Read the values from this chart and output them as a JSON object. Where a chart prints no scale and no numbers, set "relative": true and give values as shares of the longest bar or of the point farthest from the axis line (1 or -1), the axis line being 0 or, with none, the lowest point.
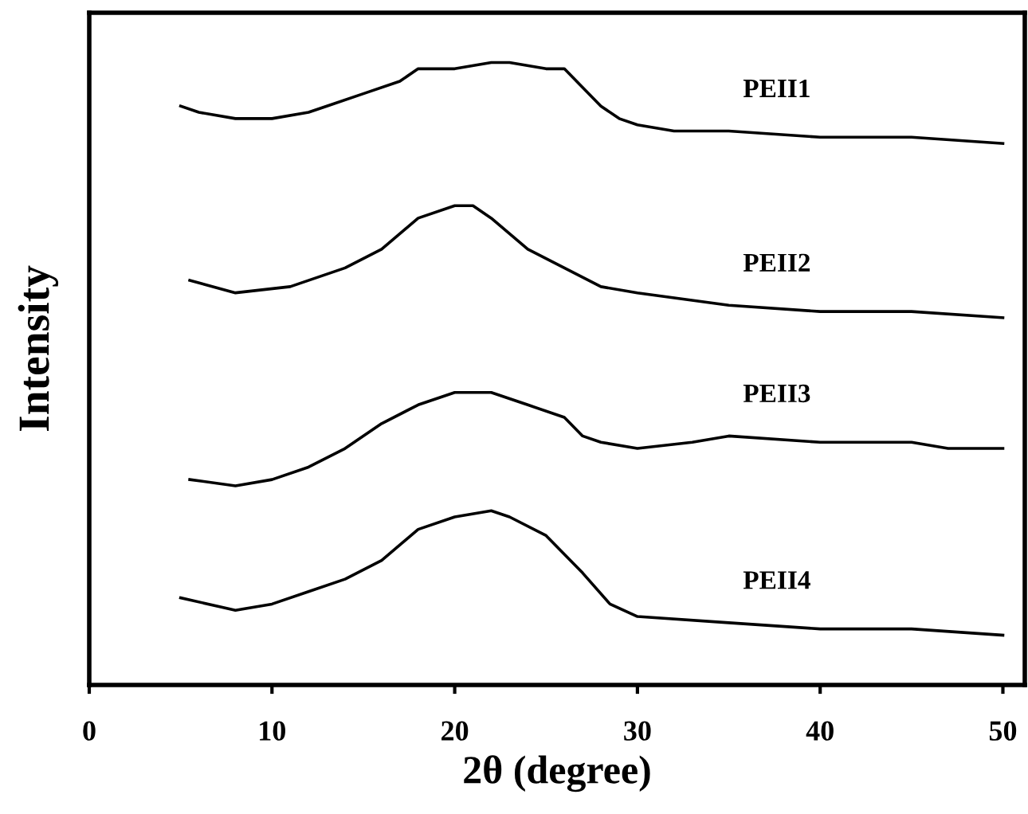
{
  "chart_data": {
    "type": "line",
    "relative": true,
    "xlabel": "2θ (degree)",
    "ylabel": "Intensity",
    "xlim": [
      0,
      51.2
    ],
    "xticks": [
      0,
      10,
      20,
      30,
      40,
      50
    ],
    "grid": false,
    "legend": false,
    "marker": "none",
    "line_style": "solid",
    "series": [
      {
        "name": "PEII1",
        "color": "#000000",
        "x": [
          5,
          6,
          8,
          10,
          12,
          13,
          15,
          17,
          18,
          20,
          22,
          23,
          25,
          26,
          27,
          28,
          29,
          30,
          32,
          35,
          40,
          45,
          50
        ],
        "values": [
          0.93,
          0.92,
          0.91,
          0.91,
          0.92,
          0.93,
          0.95,
          0.97,
          0.99,
          0.99,
          1.0,
          1.0,
          0.99,
          0.99,
          0.96,
          0.93,
          0.91,
          0.9,
          0.89,
          0.89,
          0.88,
          0.88,
          0.87
        ]
      },
      {
        "name": "PEII2",
        "color": "#000000",
        "x": [
          5.5,
          8,
          11,
          14,
          16,
          18,
          20,
          21,
          22,
          24,
          26,
          28,
          30,
          35,
          40,
          45,
          50
        ],
        "values": [
          0.65,
          0.63,
          0.64,
          0.67,
          0.7,
          0.75,
          0.77,
          0.77,
          0.75,
          0.7,
          0.67,
          0.64,
          0.63,
          0.61,
          0.6,
          0.6,
          0.59
        ]
      },
      {
        "name": "PEII3",
        "color": "#000000",
        "x": [
          5.5,
          8,
          10,
          12,
          14,
          16,
          18,
          20,
          22,
          24,
          26,
          27,
          28,
          30,
          33,
          35,
          40,
          45,
          47,
          50
        ],
        "values": [
          0.33,
          0.32,
          0.33,
          0.35,
          0.38,
          0.42,
          0.45,
          0.47,
          0.47,
          0.45,
          0.43,
          0.4,
          0.39,
          0.38,
          0.39,
          0.4,
          0.39,
          0.39,
          0.38,
          0.38
        ]
      },
      {
        "name": "PEII4",
        "color": "#000000",
        "x": [
          5,
          8,
          10,
          12,
          14,
          16,
          18,
          20,
          22,
          23,
          25,
          27,
          28.5,
          30,
          35,
          40,
          45,
          50
        ],
        "values": [
          0.14,
          0.12,
          0.13,
          0.15,
          0.17,
          0.2,
          0.25,
          0.27,
          0.28,
          0.27,
          0.24,
          0.18,
          0.13,
          0.11,
          0.1,
          0.09,
          0.09,
          0.08
        ]
      }
    ]
  }
}
